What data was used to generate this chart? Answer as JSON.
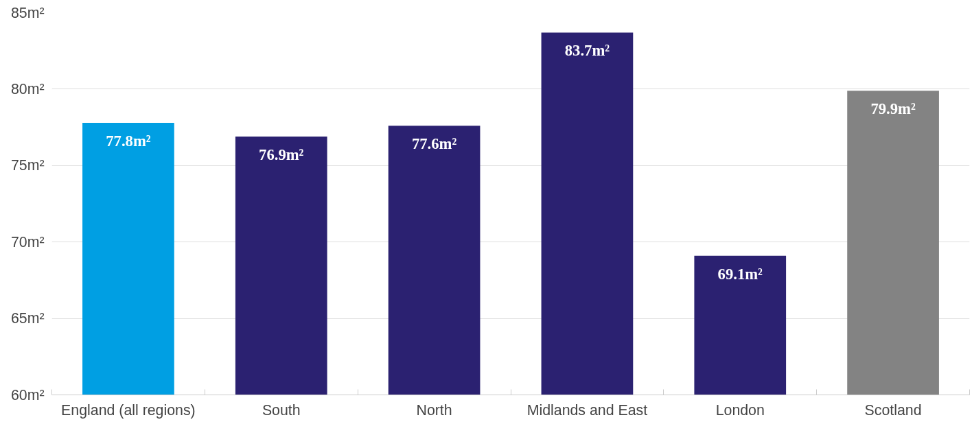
{
  "chart_data": {
    "type": "bar",
    "categories": [
      "England (all regions)",
      "South",
      "North",
      "Midlands and East",
      "London",
      "Scotland"
    ],
    "values": [
      77.8,
      76.9,
      77.6,
      83.7,
      69.1,
      79.9
    ],
    "colors": [
      "#009fe3",
      "#2b2171",
      "#2b2171",
      "#2b2171",
      "#2b2171",
      "#838383"
    ],
    "value_labels": [
      "77.8m²",
      "76.9m²",
      "77.6m²",
      "83.7m²",
      "69.1m²",
      "79.9m²"
    ],
    "ylim": [
      60,
      85
    ],
    "yticks": [
      {
        "value": 60,
        "label": "60m²"
      },
      {
        "value": 65,
        "label": "65m²"
      },
      {
        "value": 70,
        "label": "70m²"
      },
      {
        "value": 75,
        "label": "75m²"
      },
      {
        "value": 80,
        "label": "80m²"
      },
      {
        "value": 85,
        "label": "85m²"
      }
    ],
    "grid": "y"
  }
}
